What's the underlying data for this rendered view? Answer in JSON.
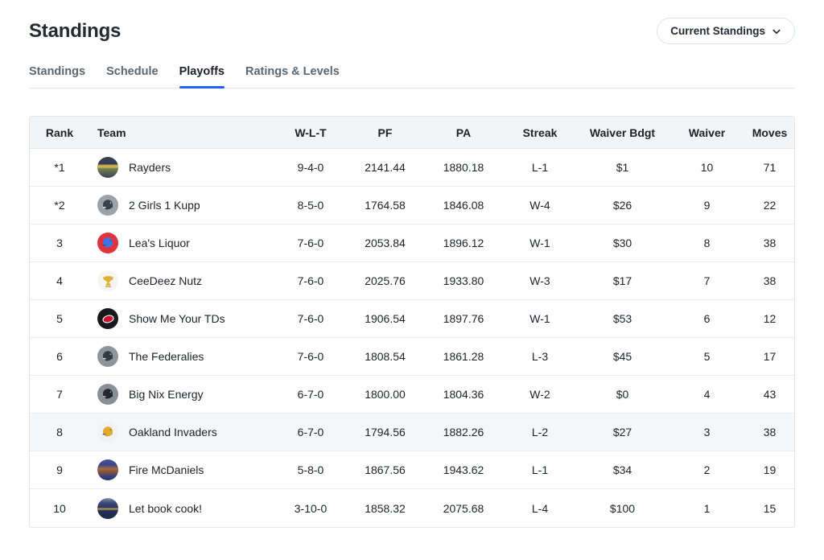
{
  "page": {
    "title": "Standings"
  },
  "filter_button": {
    "label": "Current Standings"
  },
  "tabs": [
    {
      "label": "Standings",
      "active": false
    },
    {
      "label": "Schedule",
      "active": false
    },
    {
      "label": "Playoffs",
      "active": true
    },
    {
      "label": "Ratings & Levels",
      "active": false
    }
  ],
  "colors": {
    "accent_blue": "#1d62f0",
    "header_bg": "#f3f4f6",
    "border": "#e3e6ea",
    "highlight_row_bg": "#f5f6f8"
  },
  "table": {
    "columns": [
      "Rank",
      "Team",
      "W-L-T",
      "PF",
      "PA",
      "Streak",
      "Waiver Bdgt",
      "Waiver",
      "Moves"
    ],
    "rows": [
      {
        "rank": "*1",
        "team": "Rayders",
        "wlt": "9-4-0",
        "pf": "2141.44",
        "pa": "1880.18",
        "streak": "L-1",
        "waiver_bdgt": "$1",
        "waiver": "10",
        "moves": "71",
        "highlighted": false,
        "avatar": {
          "name": "rayders-stadium-avatar",
          "kind": "photo",
          "stops": [
            "#343e53 0%",
            "#353f54 34%",
            "#c9a84c 40%",
            "#d4b351 50%",
            "#72804f 56%",
            "#5d6a54 72%",
            "#39414e 100%"
          ]
        }
      },
      {
        "rank": "*2",
        "team": "2 Girls 1 Kupp",
        "wlt": "8-5-0",
        "pf": "1764.58",
        "pa": "1846.08",
        "streak": "W-4",
        "waiver_bdgt": "$26",
        "waiver": "9",
        "moves": "22",
        "highlighted": false,
        "avatar": {
          "name": "navy-helmet-avatar",
          "kind": "helmet",
          "bg": "#9ba2aa",
          "shell": "#39414d",
          "mask": "#e8eaed"
        }
      },
      {
        "rank": "3",
        "team": "Lea's Liquor",
        "wlt": "7-6-0",
        "pf": "2053.84",
        "pa": "1896.12",
        "streak": "W-1",
        "waiver_bdgt": "$30",
        "waiver": "8",
        "moves": "38",
        "highlighted": false,
        "avatar": {
          "name": "blue-helmet-red-avatar",
          "kind": "helmet",
          "bg": "#e0343c",
          "shell": "#3a77e0",
          "mask": "#244f9e"
        }
      },
      {
        "rank": "4",
        "team": "CeeDeez Nutz",
        "wlt": "7-6-0",
        "pf": "2025.76",
        "pa": "1933.80",
        "streak": "W-3",
        "waiver_bdgt": "$17",
        "waiver": "7",
        "moves": "38",
        "highlighted": false,
        "avatar": {
          "name": "trophy-avatar",
          "kind": "trophy",
          "bg": "#f6f5f0"
        }
      },
      {
        "rank": "5",
        "team": "Show Me Your TDs",
        "wlt": "7-6-0",
        "pf": "1906.54",
        "pa": "1897.76",
        "streak": "W-1",
        "waiver_bdgt": "$53",
        "waiver": "6",
        "moves": "12",
        "highlighted": false,
        "avatar": {
          "name": "red-oval-logo-avatar",
          "kind": "oval",
          "bg": "#17191c",
          "oval": "#c8102e",
          "stroke": "#ffffff"
        }
      },
      {
        "rank": "6",
        "team": "The Federalies",
        "wlt": "7-6-0",
        "pf": "1808.54",
        "pa": "1861.28",
        "streak": "L-3",
        "waiver_bdgt": "$45",
        "waiver": "5",
        "moves": "17",
        "highlighted": false,
        "avatar": {
          "name": "dark-helmet-avatar",
          "kind": "helmet",
          "bg": "#8d959d",
          "shell": "#343c48",
          "mask": "#d8dadd"
        }
      },
      {
        "rank": "7",
        "team": "Big Nix Energy",
        "wlt": "6-7-0",
        "pf": "1800.00",
        "pa": "1804.36",
        "streak": "W-2",
        "waiver_bdgt": "$0",
        "waiver": "4",
        "moves": "43",
        "highlighted": false,
        "avatar": {
          "name": "black-helmet-avatar",
          "kind": "helmet",
          "bg": "#878f98",
          "shell": "#23272e",
          "mask": "#a6adb4"
        }
      },
      {
        "rank": "8",
        "team": "Oakland Invaders",
        "wlt": "6-7-0",
        "pf": "1794.56",
        "pa": "1882.26",
        "streak": "L-2",
        "waiver_bdgt": "$27",
        "waiver": "3",
        "moves": "38",
        "highlighted": true,
        "avatar": {
          "name": "gold-helmet-avatar",
          "kind": "helmet",
          "bg": "#f1f2f3",
          "shell": "#e2aa2e",
          "mask": "#3a66c8"
        }
      },
      {
        "rank": "9",
        "team": "Fire McDaniels",
        "wlt": "5-8-0",
        "pf": "1867.56",
        "pa": "1943.62",
        "streak": "L-1",
        "waiver_bdgt": "$34",
        "waiver": "2",
        "moves": "19",
        "highlighted": false,
        "avatar": {
          "name": "person-photo-avatar",
          "kind": "photo",
          "stops": [
            "#44549a 0%",
            "#3a4888 26%",
            "#a06a42 45%",
            "#8a5535 58%",
            "#32407a 82%",
            "#2a3568 100%"
          ]
        }
      },
      {
        "rank": "10",
        "team": "Let book cook!",
        "wlt": "3-10-0",
        "pf": "1858.32",
        "pa": "2075.68",
        "streak": "L-4",
        "waiver_bdgt": "$100",
        "waiver": "1",
        "moves": "15",
        "highlighted": false,
        "avatar": {
          "name": "person-medal-photo-avatar",
          "kind": "photo",
          "stops": [
            "#8a93a8 0%",
            "#3a4a7a 22%",
            "#2b3a66 45%",
            "#c7a23e 52%",
            "#253158 60%",
            "#1d2745 100%"
          ]
        }
      }
    ]
  }
}
